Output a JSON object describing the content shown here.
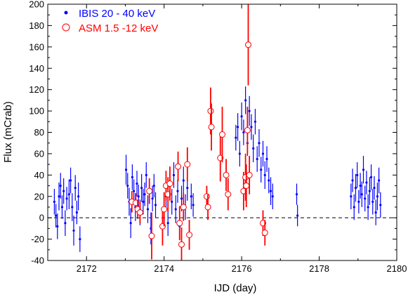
{
  "chart_data": {
    "type": "scatter",
    "xlabel": "IJD (day)",
    "ylabel": "Flux (mCrab)",
    "xlim": [
      2171,
      2180
    ],
    "ylim": [
      -40,
      200
    ],
    "xticks": [
      2172,
      2174,
      2176,
      2178,
      2180
    ],
    "yticks": [
      -40,
      -20,
      0,
      20,
      40,
      60,
      80,
      100,
      120,
      140,
      160,
      180,
      200
    ],
    "reference_line": {
      "y": 0,
      "style": "dashed"
    },
    "legend_position": "top-left",
    "series": [
      {
        "name": "IBIS 20 - 40 keV",
        "color": "#0000ff",
        "marker": "dot",
        "note_points": "dense clusters of points with error bars",
        "points": [
          [
            2171.17,
            15,
            12
          ],
          [
            2171.21,
            2,
            11
          ],
          [
            2171.25,
            -8,
            12
          ],
          [
            2171.29,
            20,
            13
          ],
          [
            2171.33,
            30,
            12
          ],
          [
            2171.37,
            10,
            11
          ],
          [
            2171.41,
            25,
            12
          ],
          [
            2171.45,
            -5,
            12
          ],
          [
            2171.49,
            18,
            11
          ],
          [
            2171.55,
            22,
            14
          ],
          [
            2171.59,
            35,
            12
          ],
          [
            2171.63,
            10,
            13
          ],
          [
            2171.67,
            -12,
            14
          ],
          [
            2171.71,
            28,
            12
          ],
          [
            2171.75,
            5,
            11
          ],
          [
            2171.79,
            20,
            13
          ],
          [
            2171.83,
            -20,
            12
          ],
          [
            2173.02,
            45,
            14
          ],
          [
            2173.06,
            30,
            12
          ],
          [
            2173.1,
            15,
            13
          ],
          [
            2173.14,
            -5,
            14
          ],
          [
            2173.18,
            38,
            12
          ],
          [
            2173.22,
            25,
            11
          ],
          [
            2173.26,
            10,
            13
          ],
          [
            2173.3,
            32,
            12
          ],
          [
            2173.34,
            20,
            11
          ],
          [
            2173.38,
            5,
            12
          ],
          [
            2173.42,
            28,
            13
          ],
          [
            2173.46,
            15,
            12
          ],
          [
            2173.5,
            22,
            11
          ],
          [
            2173.54,
            40,
            12
          ],
          [
            2173.58,
            8,
            13
          ],
          [
            2173.62,
            25,
            12
          ],
          [
            2173.66,
            -10,
            15
          ],
          [
            2173.7,
            18,
            12
          ],
          [
            2173.74,
            30,
            11
          ],
          [
            2173.78,
            12,
            12
          ],
          [
            2174.05,
            20,
            13
          ],
          [
            2174.1,
            -5,
            12
          ],
          [
            2174.15,
            30,
            13
          ],
          [
            2174.2,
            15,
            12
          ],
          [
            2174.25,
            40,
            12
          ],
          [
            2174.3,
            8,
            13
          ],
          [
            2174.35,
            25,
            11
          ],
          [
            2174.4,
            -8,
            12
          ],
          [
            2174.45,
            18,
            12
          ],
          [
            2174.5,
            35,
            13
          ],
          [
            2174.55,
            10,
            12
          ],
          [
            2174.6,
            28,
            12
          ],
          [
            2174.65,
            -15,
            13
          ],
          [
            2174.7,
            20,
            12
          ],
          [
            2174.75,
            12,
            11
          ],
          [
            2175.85,
            75,
            12
          ],
          [
            2175.9,
            85,
            13
          ],
          [
            2175.95,
            60,
            12
          ],
          [
            2176.0,
            95,
            13
          ],
          [
            2176.05,
            80,
            12
          ],
          [
            2176.1,
            110,
            13
          ],
          [
            2176.15,
            70,
            12
          ],
          [
            2176.2,
            100,
            14
          ],
          [
            2176.25,
            85,
            12
          ],
          [
            2176.3,
            65,
            13
          ],
          [
            2176.35,
            90,
            12
          ],
          [
            2176.4,
            55,
            12
          ],
          [
            2176.45,
            70,
            13
          ],
          [
            2176.5,
            45,
            12
          ],
          [
            2176.55,
            60,
            12
          ],
          [
            2176.6,
            40,
            13
          ],
          [
            2176.65,
            55,
            12
          ],
          [
            2176.7,
            35,
            12
          ],
          [
            2176.75,
            25,
            13
          ],
          [
            2176.8,
            20,
            12
          ],
          [
            2177.42,
            22,
            10
          ],
          [
            2177.44,
            2,
            10
          ],
          [
            2178.82,
            20,
            12
          ],
          [
            2178.86,
            35,
            11
          ],
          [
            2178.9,
            10,
            12
          ],
          [
            2178.94,
            28,
            13
          ],
          [
            2178.98,
            40,
            12
          ],
          [
            2179.02,
            15,
            11
          ],
          [
            2179.06,
            30,
            12
          ],
          [
            2179.1,
            22,
            12
          ],
          [
            2179.14,
            45,
            13
          ],
          [
            2179.18,
            18,
            12
          ],
          [
            2179.22,
            33,
            11
          ],
          [
            2179.26,
            10,
            12
          ],
          [
            2179.3,
            25,
            13
          ],
          [
            2179.34,
            38,
            12
          ],
          [
            2179.38,
            15,
            12
          ],
          [
            2179.42,
            28,
            11
          ],
          [
            2179.46,
            5,
            12
          ],
          [
            2179.5,
            20,
            13
          ],
          [
            2179.54,
            35,
            12
          ],
          [
            2179.58,
            12,
            12
          ]
        ]
      },
      {
        "name": "ASM 1.5 -12 keV",
        "color": "#ff0000",
        "marker": "open-circle",
        "points": [
          [
            2173.17,
            15,
            10
          ],
          [
            2173.27,
            14,
            9
          ],
          [
            2173.32,
            8,
            9
          ],
          [
            2173.38,
            5,
            10
          ],
          [
            2173.62,
            25,
            12
          ],
          [
            2173.68,
            -17,
            22
          ],
          [
            2173.96,
            -8,
            18
          ],
          [
            2174.0,
            8,
            16
          ],
          [
            2174.05,
            30,
            14
          ],
          [
            2174.1,
            22,
            16
          ],
          [
            2174.15,
            32,
            16
          ],
          [
            2174.36,
            48,
            14
          ],
          [
            2174.4,
            -5,
            16
          ],
          [
            2174.45,
            -25,
            16
          ],
          [
            2174.5,
            10,
            13
          ],
          [
            2174.6,
            50,
            16
          ],
          [
            2174.65,
            -16,
            14
          ],
          [
            2175.1,
            20,
            10
          ],
          [
            2175.13,
            10,
            12
          ],
          [
            2175.2,
            100,
            22
          ],
          [
            2175.22,
            85,
            22
          ],
          [
            2175.45,
            56,
            22
          ],
          [
            2175.5,
            78,
            26
          ],
          [
            2175.6,
            40,
            15
          ],
          [
            2175.65,
            22,
            15
          ],
          [
            2176.05,
            25,
            18
          ],
          [
            2176.1,
            38,
            22
          ],
          [
            2176.12,
            30,
            20
          ],
          [
            2176.15,
            82,
            22
          ],
          [
            2176.17,
            162,
            38
          ],
          [
            2176.2,
            40,
            18
          ],
          [
            2176.55,
            -5,
            12
          ],
          [
            2176.6,
            -14,
            12
          ]
        ]
      }
    ]
  }
}
